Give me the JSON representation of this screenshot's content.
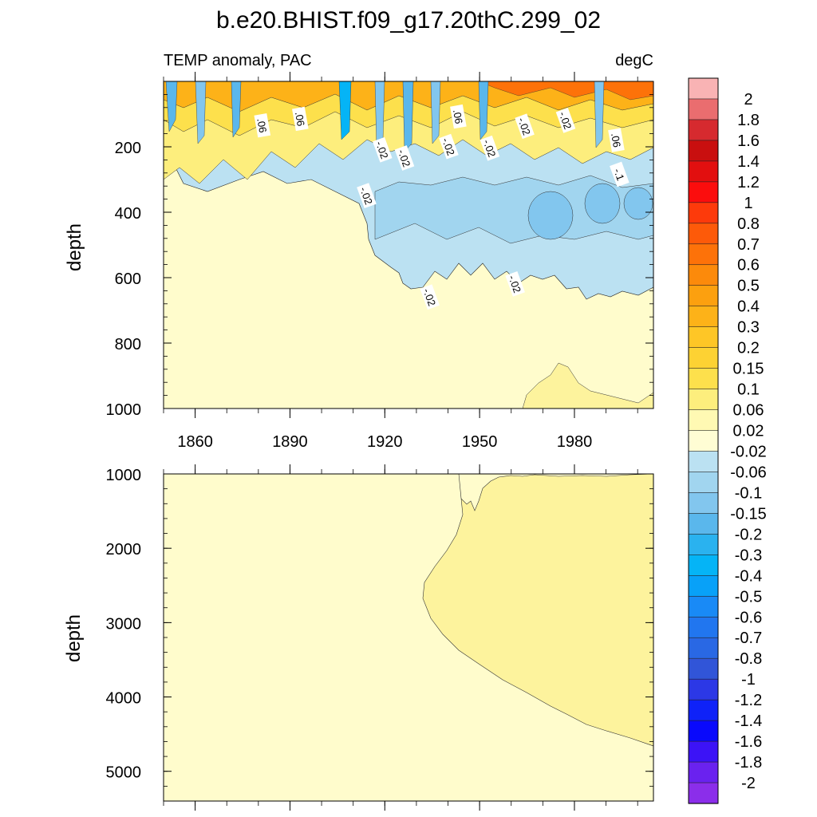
{
  "chart_data": {
    "type": "heatmap",
    "title": "b.e20.BHIST.f09_g17.20thC.299_02",
    "subtitle_left": "TEMP anomaly, PAC",
    "subtitle_right": "degC",
    "ylabel": "depth",
    "x_ticks": [
      1860,
      1890,
      1920,
      1950,
      1980
    ],
    "xlim": [
      1850,
      2005
    ],
    "panels": [
      {
        "name": "upper",
        "ylim": [
          0,
          1000
        ],
        "y_ticks": [
          200,
          400,
          600,
          800,
          1000
        ],
        "contour_labels": [
          {
            "text": ".06",
            "year": 1881,
            "depth": 135
          },
          {
            "text": ".06",
            "year": 1893,
            "depth": 115
          },
          {
            "text": ".06",
            "year": 1943,
            "depth": 108
          },
          {
            "text": "-.02",
            "year": 1964,
            "depth": 138
          },
          {
            "text": "-.02",
            "year": 1977,
            "depth": 120
          },
          {
            "text": ".06",
            "year": 1993,
            "depth": 180
          },
          {
            "text": "-.02",
            "year": 1919,
            "depth": 210
          },
          {
            "text": "-.02",
            "year": 1926,
            "depth": 235
          },
          {
            "text": "-.02",
            "year": 1940,
            "depth": 200
          },
          {
            "text": "-.02",
            "year": 1953,
            "depth": 205
          },
          {
            "text": "-.1",
            "year": 1994,
            "depth": 285
          },
          {
            "text": "-.02",
            "year": 1914,
            "depth": 350
          },
          {
            "text": "-.02",
            "year": 1934,
            "depth": 660
          },
          {
            "text": "-.02",
            "year": 1961,
            "depth": 620
          }
        ]
      },
      {
        "name": "lower",
        "ylim": [
          1000,
          5400
        ],
        "y_ticks": [
          1000,
          2000,
          3000,
          4000,
          5000
        ]
      }
    ],
    "colorbar": {
      "labels": [
        "2",
        "1.8",
        "1.6",
        "1.4",
        "1.2",
        "1",
        "0.8",
        "0.7",
        "0.6",
        "0.5",
        "0.4",
        "0.3",
        "0.2",
        "0.15",
        "0.1",
        "0.06",
        "0.02",
        "-0.02",
        "-0.06",
        "-0.1",
        "-0.15",
        "-0.2",
        "-0.3",
        "-0.4",
        "-0.5",
        "-0.6",
        "-0.7",
        "-0.8",
        "-1",
        "-1.2",
        "-1.4",
        "-1.6",
        "-1.8",
        "-2"
      ],
      "colors": [
        "#f9b3b4",
        "#ea6d6f",
        "#d62a2f",
        "#c90f0f",
        "#e20f0f",
        "#fb0d0d",
        "#fd3a0b",
        "#fd5a09",
        "#fd7209",
        "#fc8a0b",
        "#fca00f",
        "#fdb218",
        "#fec626",
        "#fdd233",
        "#fde04c",
        "#fdee7d",
        "#fff9b3",
        "#fffdd4",
        "#bbe1f2",
        "#a1d5ef",
        "#82c6ee",
        "#5ab7ec",
        "#2ab2ef",
        "#05b4f6",
        "#08a1f8",
        "#198af6",
        "#2176ef",
        "#2968e4",
        "#3155d8",
        "#2c38e6",
        "#0f22f8",
        "#0909fc",
        "#3c13f6",
        "#6a22ef",
        "#8b2eea"
      ]
    },
    "colors": {
      "background_field": "#fffccc",
      "warm_field": "#fdf39d",
      "cool_field": "#bbe1f2"
    }
  }
}
